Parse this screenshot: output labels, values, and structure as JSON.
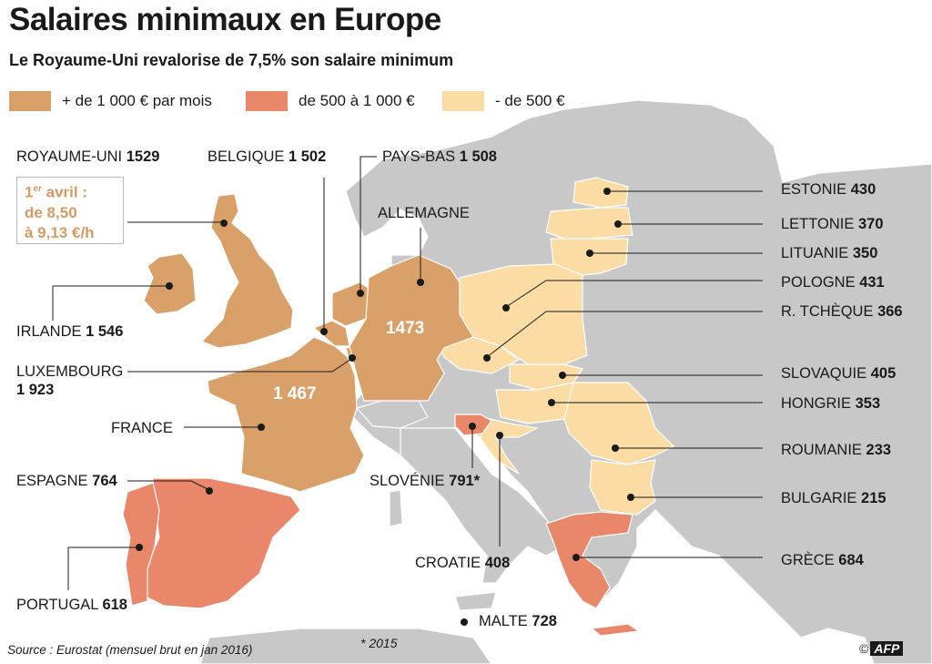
{
  "title": "Salaires minimaux en Europe",
  "subtitle": "Le Royaume-Uni revalorise de 7,5% son salaire minimum",
  "legend": [
    {
      "label": "+ de 1 000 € par mois",
      "color": "#d9a06a"
    },
    {
      "label": "de 500 à 1 000 €",
      "color": "#e9876a"
    },
    {
      "label": "- de 500 €",
      "color": "#fbdca4"
    }
  ],
  "colors": {
    "sea": "#ffffff",
    "land_other": "#c8c8c8",
    "border": "#ffffff",
    "leader": "#1a1a1a"
  },
  "countries": [
    {
      "id": "royaume-uni",
      "name": "ROYAUME-UNI",
      "value": "1529",
      "category": "high"
    },
    {
      "id": "belgique",
      "name": "BELGIQUE",
      "value": "1 502",
      "category": "high"
    },
    {
      "id": "pays-bas",
      "name": "PAYS-BAS",
      "value": "1 508",
      "category": "high"
    },
    {
      "id": "allemagne",
      "name": "ALLEMAGNE",
      "value": "1473",
      "category": "high"
    },
    {
      "id": "irlande",
      "name": "IRLANDE",
      "value": "1 546",
      "category": "high"
    },
    {
      "id": "luxembourg",
      "name": "LUXEMBOURG",
      "value": "1 923",
      "category": "high"
    },
    {
      "id": "france",
      "name": "FRANCE",
      "value": "1 467",
      "category": "high"
    },
    {
      "id": "espagne",
      "name": "ESPAGNE",
      "value": "764",
      "category": "mid"
    },
    {
      "id": "portugal",
      "name": "PORTUGAL",
      "value": "618",
      "category": "mid"
    },
    {
      "id": "slovenie",
      "name": "SLOVÉNIE",
      "value": "791*",
      "category": "mid"
    },
    {
      "id": "croatie",
      "name": "CROATIE",
      "value": "408",
      "category": "low"
    },
    {
      "id": "malte",
      "name": "MALTE",
      "value": "728",
      "category": "mid"
    },
    {
      "id": "estonie",
      "name": "ESTONIE",
      "value": "430",
      "category": "low"
    },
    {
      "id": "lettonie",
      "name": "LETTONIE",
      "value": "370",
      "category": "low"
    },
    {
      "id": "lituanie",
      "name": "LITUANIE",
      "value": "350",
      "category": "low"
    },
    {
      "id": "pologne",
      "name": "POLOGNE",
      "value": "431",
      "category": "low"
    },
    {
      "id": "tcheque",
      "name": "R. TCHÈQUE",
      "value": "366",
      "category": "low"
    },
    {
      "id": "slovaquie",
      "name": "SLOVAQUIE",
      "value": "405",
      "category": "low"
    },
    {
      "id": "hongrie",
      "name": "HONGRIE",
      "value": "353",
      "category": "low"
    },
    {
      "id": "roumanie",
      "name": "ROUMANIE",
      "value": "233",
      "category": "low"
    },
    {
      "id": "bulgarie",
      "name": "BULGARIE",
      "value": "215",
      "category": "low"
    },
    {
      "id": "grece",
      "name": "GRÈCE",
      "value": "684",
      "category": "mid"
    }
  ],
  "uk_note": {
    "sup": "er",
    "line1": "1",
    "line1_rest": " avril :",
    "line2": "de 8,50",
    "line3": "à 9,13 €/h"
  },
  "source": "Source : Eurostat (mensuel brut en jan 2016)",
  "footnote": "* 2015",
  "credit": {
    "symbol": "©",
    "agency": "AFP"
  }
}
